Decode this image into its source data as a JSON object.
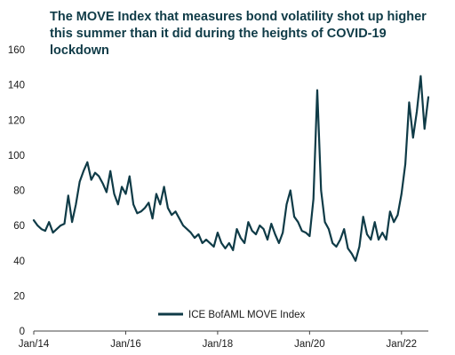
{
  "chart_data": {
    "type": "line",
    "title": "The MOVE Index that measures bond volatility shot up higher this summer than it did during the heights of COVID-19 lockdown",
    "xlabel": "",
    "ylabel": "",
    "ylim": [
      0,
      160
    ],
    "yticks": [
      "0",
      "20",
      "40",
      "60",
      "80",
      "100",
      "120",
      "140",
      "160"
    ],
    "xlim": [
      "2014-01",
      "2022-08"
    ],
    "xticks": [
      "Jan/14",
      "Jan/16",
      "Jan/18",
      "Jan/20",
      "Jan/22"
    ],
    "grid": false,
    "legend_position": "bottom-center",
    "line_color": "#0f3b47",
    "series": [
      {
        "name": "ICE BofAML MOVE Index",
        "x": [
          "2014-01",
          "2014-02",
          "2014-03",
          "2014-04",
          "2014-05",
          "2014-06",
          "2014-07",
          "2014-08",
          "2014-09",
          "2014-10",
          "2014-11",
          "2014-12",
          "2015-01",
          "2015-02",
          "2015-03",
          "2015-04",
          "2015-05",
          "2015-06",
          "2015-07",
          "2015-08",
          "2015-09",
          "2015-10",
          "2015-11",
          "2015-12",
          "2016-01",
          "2016-02",
          "2016-03",
          "2016-04",
          "2016-05",
          "2016-06",
          "2016-07",
          "2016-08",
          "2016-09",
          "2016-10",
          "2016-11",
          "2016-12",
          "2017-01",
          "2017-02",
          "2017-03",
          "2017-04",
          "2017-05",
          "2017-06",
          "2017-07",
          "2017-08",
          "2017-09",
          "2017-10",
          "2017-11",
          "2017-12",
          "2018-01",
          "2018-02",
          "2018-03",
          "2018-04",
          "2018-05",
          "2018-06",
          "2018-07",
          "2018-08",
          "2018-09",
          "2018-10",
          "2018-11",
          "2018-12",
          "2019-01",
          "2019-02",
          "2019-03",
          "2019-04",
          "2019-05",
          "2019-06",
          "2019-07",
          "2019-08",
          "2019-09",
          "2019-10",
          "2019-11",
          "2019-12",
          "2020-01",
          "2020-02",
          "2020-03",
          "2020-04",
          "2020-05",
          "2020-06",
          "2020-07",
          "2020-08",
          "2020-09",
          "2020-10",
          "2020-11",
          "2020-12",
          "2021-01",
          "2021-02",
          "2021-03",
          "2021-04",
          "2021-05",
          "2021-06",
          "2021-07",
          "2021-08",
          "2021-09",
          "2021-10",
          "2021-11",
          "2021-12",
          "2022-01",
          "2022-02",
          "2022-03",
          "2022-04",
          "2022-05",
          "2022-06",
          "2022-07",
          "2022-08"
        ],
        "values": [
          63,
          60,
          58,
          57,
          62,
          56,
          58,
          60,
          61,
          77,
          62,
          72,
          85,
          91,
          96,
          86,
          90,
          88,
          84,
          79,
          91,
          78,
          72,
          82,
          78,
          88,
          72,
          67,
          68,
          70,
          73,
          64,
          78,
          72,
          82,
          70,
          66,
          68,
          64,
          60,
          58,
          56,
          53,
          55,
          50,
          52,
          50,
          48,
          56,
          50,
          47,
          50,
          46,
          58,
          53,
          50,
          62,
          57,
          55,
          60,
          58,
          52,
          61,
          55,
          50,
          56,
          72,
          80,
          65,
          62,
          57,
          56,
          54,
          75,
          137,
          80,
          62,
          58,
          50,
          48,
          52,
          58,
          47,
          44,
          40,
          48,
          65,
          55,
          52,
          62,
          52,
          56,
          52,
          68,
          62,
          66,
          78,
          95,
          130,
          110,
          125,
          145,
          115,
          133
        ]
      }
    ]
  }
}
